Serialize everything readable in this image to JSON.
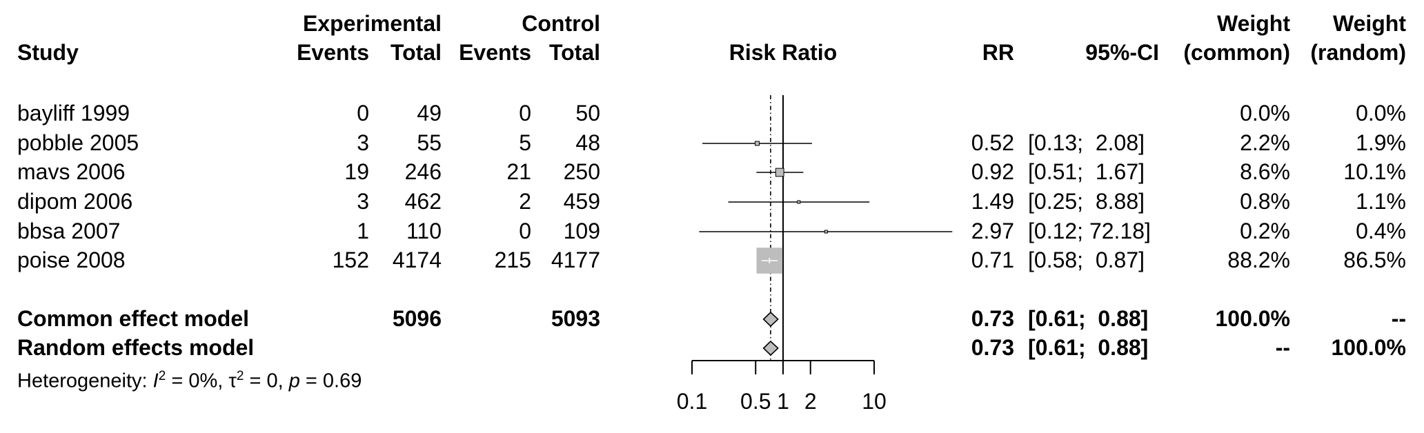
{
  "headers": {
    "group1": "Experimental",
    "group2": "Control",
    "study": "Study",
    "events1": "Events",
    "total1": "Total",
    "events2": "Events",
    "total2": "Total",
    "risk_ratio": "Risk Ratio",
    "rr": "RR",
    "ci": "95%-CI",
    "weight_common_1": "Weight",
    "weight_common_2": "(common)",
    "weight_random_1": "Weight",
    "weight_random_2": "(random)"
  },
  "studies": [
    {
      "name": "bayliff 1999",
      "e_events": "0",
      "e_total": "49",
      "c_events": "0",
      "c_total": "50",
      "rr": "",
      "ci": "",
      "w_common": "0.0%",
      "w_random": "0.0%"
    },
    {
      "name": "pobble 2005",
      "e_events": "3",
      "e_total": "55",
      "c_events": "5",
      "c_total": "48",
      "rr": "0.52",
      "ci": "[0.13;  2.08]",
      "w_common": "2.2%",
      "w_random": "1.9%"
    },
    {
      "name": "mavs 2006",
      "e_events": "19",
      "e_total": "246",
      "c_events": "21",
      "c_total": "250",
      "rr": "0.92",
      "ci": "[0.51;  1.67]",
      "w_common": "8.6%",
      "w_random": "10.1%"
    },
    {
      "name": "dipom 2006",
      "e_events": "3",
      "e_total": "462",
      "c_events": "2",
      "c_total": "459",
      "rr": "1.49",
      "ci": "[0.25;  8.88]",
      "w_common": "0.8%",
      "w_random": "1.1%"
    },
    {
      "name": "bbsa 2007",
      "e_events": "1",
      "e_total": "110",
      "c_events": "0",
      "c_total": "109",
      "rr": "2.97",
      "ci": "[0.12; 72.18]",
      "w_common": "0.2%",
      "w_random": "0.4%"
    },
    {
      "name": "poise 2008",
      "e_events": "152",
      "e_total": "4174",
      "c_events": "215",
      "c_total": "4177",
      "rr": "0.71",
      "ci": "[0.58;  0.87]",
      "w_common": "88.2%",
      "w_random": "86.5%"
    }
  ],
  "summary": {
    "common": {
      "label": "Common effect model",
      "e_total": "5096",
      "c_total": "5093",
      "rr": "0.73",
      "ci": "[0.61;  0.88]",
      "w_common": "100.0%",
      "w_random": "--"
    },
    "random": {
      "label": "Random effects model",
      "rr": "0.73",
      "ci": "[0.61;  0.88]",
      "w_common": "--",
      "w_random": "100.0%"
    }
  },
  "heterogeneity": {
    "prefix": "Heterogeneity: ",
    "i2_symbol": "I",
    "i2_sup": "2",
    "i2_value": " = 0%, ",
    "tau_symbol": "τ",
    "tau_sup": "2",
    "tau_value": " = 0, ",
    "p_symbol": "p",
    "p_value": " = 0.69"
  },
  "colors": {
    "square": "#bdbdbd",
    "diamond": "#bdbdbd",
    "line": "#000000"
  },
  "chart_data": {
    "type": "forest",
    "xlabel": "Risk Ratio",
    "scale": "log",
    "xlim": [
      0.1,
      10
    ],
    "ticks": [
      0.1,
      0.5,
      1,
      2,
      10
    ],
    "tick_labels": [
      "0.1",
      "0.5",
      "1",
      "2",
      "10"
    ],
    "null_value": 1,
    "pooled_reference": 0.73,
    "studies": [
      {
        "name": "pobble 2005",
        "rr": 0.52,
        "lower": 0.13,
        "upper": 2.08,
        "weight": 2.2
      },
      {
        "name": "mavs 2006",
        "rr": 0.92,
        "lower": 0.51,
        "upper": 1.67,
        "weight": 8.6
      },
      {
        "name": "dipom 2006",
        "rr": 1.49,
        "lower": 0.25,
        "upper": 8.88,
        "weight": 0.8
      },
      {
        "name": "bbsa 2007",
        "rr": 2.97,
        "lower": 0.12,
        "upper": 72.18,
        "weight": 0.2
      },
      {
        "name": "poise 2008",
        "rr": 0.71,
        "lower": 0.58,
        "upper": 0.87,
        "weight": 88.2
      }
    ],
    "pooled": [
      {
        "name": "Common effect model",
        "rr": 0.73,
        "lower": 0.61,
        "upper": 0.88
      },
      {
        "name": "Random effects model",
        "rr": 0.73,
        "lower": 0.61,
        "upper": 0.88
      }
    ]
  }
}
